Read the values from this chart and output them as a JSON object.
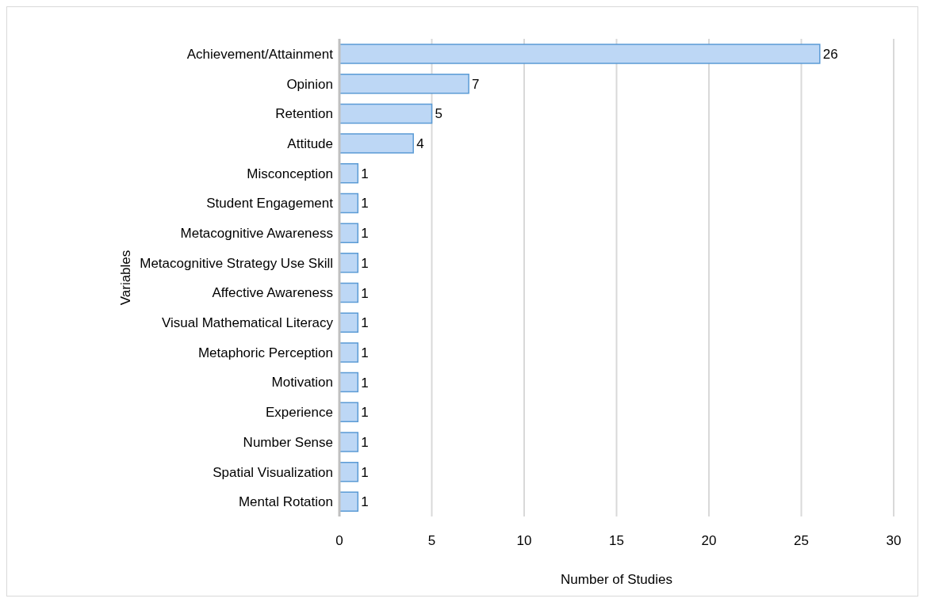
{
  "chart_data": {
    "type": "bar",
    "orientation": "horizontal",
    "xlabel": "Number of Studies",
    "ylabel": "Variables",
    "categories": [
      "Achievement/Attainment",
      "Opinion",
      "Retention",
      "Attitude",
      "Misconception",
      "Student Engagement",
      "Metacognitive Awareness",
      "Metacognitive Strategy Use Skill",
      "Affective Awareness",
      "Visual Mathematical Literacy",
      "Metaphoric Perception",
      "Motivation",
      "Experience",
      "Number Sense",
      "Spatial Visualization",
      "Mental Rotation"
    ],
    "values": [
      26,
      7,
      5,
      4,
      1,
      1,
      1,
      1,
      1,
      1,
      1,
      1,
      1,
      1,
      1,
      1
    ],
    "color": "#bdd7f5",
    "xlim": [
      0,
      30
    ],
    "xticks": [
      0,
      5,
      10,
      15,
      20,
      25,
      30
    ],
    "grid": "x",
    "data_labels": true
  }
}
